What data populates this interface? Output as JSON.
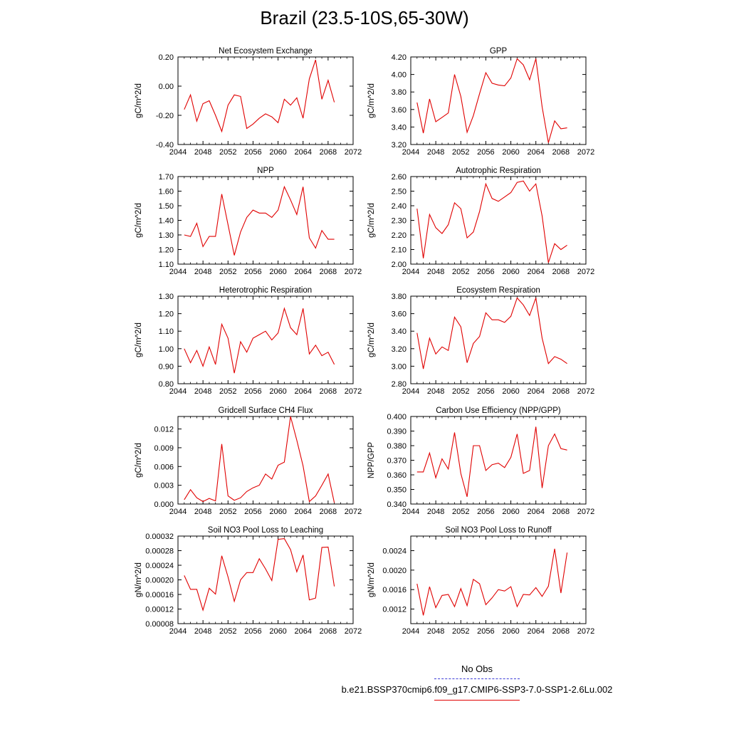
{
  "title": "Brazil (23.5-10S,65-30W)",
  "legend": {
    "obs_label": "No Obs",
    "case_label": "b.e21.BSSP370cmip6.f09_g17.CMIP6-SSP3-7.0-SSP1-2.6Lu.002",
    "obs_color": "#3b3bd6",
    "case_color": "#e00000"
  },
  "chart_data": [
    {
      "type": "line",
      "title": "Net Ecosystem Exchange",
      "ylabel": "gC/m^2/d",
      "xlim": [
        2044,
        2072
      ],
      "xticks": [
        "2044",
        "2048",
        "2052",
        "2056",
        "2060",
        "2064",
        "2068",
        "2072"
      ],
      "ylim": [
        -0.4,
        0.2
      ],
      "yticks": [
        "-0.40",
        "-0.20",
        "0.00",
        "0.20"
      ],
      "x": [
        2045,
        2046,
        2047,
        2048,
        2049,
        2050,
        2051,
        2052,
        2053,
        2054,
        2055,
        2056,
        2057,
        2058,
        2059,
        2060,
        2061,
        2062,
        2063,
        2064,
        2065,
        2066,
        2067,
        2068,
        2069
      ],
      "values": [
        -0.16,
        -0.06,
        -0.24,
        -0.12,
        -0.1,
        -0.2,
        -0.31,
        -0.13,
        -0.06,
        -0.07,
        -0.29,
        -0.26,
        -0.22,
        -0.19,
        -0.21,
        -0.25,
        -0.09,
        -0.13,
        -0.08,
        -0.22,
        0.05,
        0.18,
        -0.09,
        0.04,
        -0.11
      ]
    },
    {
      "type": "line",
      "title": "GPP",
      "ylabel": "gC/m^2/d",
      "xlim": [
        2044,
        2072
      ],
      "xticks": [
        "2044",
        "2048",
        "2052",
        "2056",
        "2060",
        "2064",
        "2068",
        "2072"
      ],
      "ylim": [
        3.2,
        4.2
      ],
      "yticks": [
        "3.20",
        "3.40",
        "3.60",
        "3.80",
        "4.00",
        "4.20"
      ],
      "x": [
        2045,
        2046,
        2047,
        2048,
        2049,
        2050,
        2051,
        2052,
        2053,
        2054,
        2055,
        2056,
        2057,
        2058,
        2059,
        2060,
        2061,
        2062,
        2063,
        2064,
        2065,
        2066,
        2067,
        2068,
        2069
      ],
      "values": [
        3.68,
        3.33,
        3.72,
        3.46,
        3.51,
        3.56,
        4.0,
        3.75,
        3.34,
        3.53,
        3.78,
        4.02,
        3.9,
        3.88,
        3.87,
        3.96,
        4.18,
        4.11,
        3.94,
        4.18,
        3.63,
        3.22,
        3.47,
        3.38,
        3.39
      ]
    },
    {
      "type": "line",
      "title": "NPP",
      "ylabel": "gC/m^2/d",
      "xlim": [
        2044,
        2072
      ],
      "xticks": [
        "2044",
        "2048",
        "2052",
        "2056",
        "2060",
        "2064",
        "2068",
        "2072"
      ],
      "ylim": [
        1.1,
        1.7
      ],
      "yticks": [
        "1.10",
        "1.20",
        "1.30",
        "1.40",
        "1.50",
        "1.60",
        "1.70"
      ],
      "x": [
        2045,
        2046,
        2047,
        2048,
        2049,
        2050,
        2051,
        2052,
        2053,
        2054,
        2055,
        2056,
        2057,
        2058,
        2059,
        2060,
        2061,
        2062,
        2063,
        2064,
        2065,
        2066,
        2067,
        2068,
        2069
      ],
      "values": [
        1.3,
        1.29,
        1.38,
        1.22,
        1.29,
        1.29,
        1.58,
        1.37,
        1.16,
        1.32,
        1.42,
        1.47,
        1.45,
        1.45,
        1.42,
        1.47,
        1.63,
        1.54,
        1.44,
        1.63,
        1.28,
        1.21,
        1.33,
        1.27,
        1.27
      ]
    },
    {
      "type": "line",
      "title": "Autotrophic Respiration",
      "ylabel": "gC/m^2/d",
      "xlim": [
        2044,
        2072
      ],
      "xticks": [
        "2044",
        "2048",
        "2052",
        "2056",
        "2060",
        "2064",
        "2068",
        "2072"
      ],
      "ylim": [
        2.0,
        2.6
      ],
      "yticks": [
        "2.00",
        "2.10",
        "2.20",
        "2.30",
        "2.40",
        "2.50",
        "2.60"
      ],
      "x": [
        2045,
        2046,
        2047,
        2048,
        2049,
        2050,
        2051,
        2052,
        2053,
        2054,
        2055,
        2056,
        2057,
        2058,
        2059,
        2060,
        2061,
        2062,
        2063,
        2064,
        2065,
        2066,
        2067,
        2068,
        2069
      ],
      "values": [
        2.38,
        2.04,
        2.34,
        2.25,
        2.21,
        2.27,
        2.42,
        2.38,
        2.18,
        2.22,
        2.36,
        2.55,
        2.45,
        2.43,
        2.46,
        2.49,
        2.56,
        2.57,
        2.5,
        2.55,
        2.33,
        2.01,
        2.14,
        2.1,
        2.13
      ]
    },
    {
      "type": "line",
      "title": "Heterotrophic Respiration",
      "ylabel": "gC/m^2/d",
      "xlim": [
        2044,
        2072
      ],
      "xticks": [
        "2044",
        "2048",
        "2052",
        "2056",
        "2060",
        "2064",
        "2068",
        "2072"
      ],
      "ylim": [
        0.8,
        1.3
      ],
      "yticks": [
        "0.80",
        "0.90",
        "1.00",
        "1.10",
        "1.20",
        "1.30"
      ],
      "x": [
        2045,
        2046,
        2047,
        2048,
        2049,
        2050,
        2051,
        2052,
        2053,
        2054,
        2055,
        2056,
        2057,
        2058,
        2059,
        2060,
        2061,
        2062,
        2063,
        2064,
        2065,
        2066,
        2067,
        2068,
        2069
      ],
      "values": [
        1.0,
        0.92,
        0.99,
        0.9,
        1.01,
        0.91,
        1.14,
        1.06,
        0.86,
        1.04,
        0.98,
        1.06,
        1.08,
        1.1,
        1.05,
        1.09,
        1.23,
        1.12,
        1.08,
        1.23,
        0.97,
        1.02,
        0.96,
        0.98,
        0.91
      ]
    },
    {
      "type": "line",
      "title": "Ecosystem Respiration",
      "ylabel": "gC/m^2/d",
      "xlim": [
        2044,
        2072
      ],
      "xticks": [
        "2044",
        "2048",
        "2052",
        "2056",
        "2060",
        "2064",
        "2068",
        "2072"
      ],
      "ylim": [
        2.8,
        3.8
      ],
      "yticks": [
        "2.80",
        "3.00",
        "3.20",
        "3.40",
        "3.60",
        "3.80"
      ],
      "x": [
        2045,
        2046,
        2047,
        2048,
        2049,
        2050,
        2051,
        2052,
        2053,
        2054,
        2055,
        2056,
        2057,
        2058,
        2059,
        2060,
        2061,
        2062,
        2063,
        2064,
        2065,
        2066,
        2067,
        2068,
        2069
      ],
      "values": [
        3.38,
        2.97,
        3.32,
        3.14,
        3.22,
        3.18,
        3.56,
        3.45,
        3.04,
        3.26,
        3.34,
        3.61,
        3.53,
        3.53,
        3.5,
        3.57,
        3.78,
        3.7,
        3.58,
        3.78,
        3.32,
        3.03,
        3.11,
        3.08,
        3.03
      ]
    },
    {
      "type": "line",
      "title": "Gridcell Surface CH4 Flux",
      "ylabel": "gC/m^2/d",
      "xlim": [
        2044,
        2072
      ],
      "xticks": [
        "2044",
        "2048",
        "2052",
        "2056",
        "2060",
        "2064",
        "2068",
        "2072"
      ],
      "ylim": [
        0.0,
        0.014
      ],
      "yticks": [
        "0.000",
        "0.003",
        "0.006",
        "0.009",
        "0.012"
      ],
      "ytick_values": [
        0,
        0.003,
        0.006,
        0.009,
        0.012
      ],
      "x": [
        2045,
        2046,
        2047,
        2048,
        2049,
        2050,
        2051,
        2052,
        2053,
        2054,
        2055,
        2056,
        2057,
        2058,
        2059,
        2060,
        2061,
        2062,
        2063,
        2064,
        2065,
        2066,
        2067,
        2068,
        2069
      ],
      "values": [
        0.0007,
        0.0023,
        0.001,
        0.0004,
        0.0009,
        0.0005,
        0.0096,
        0.0013,
        0.0006,
        0.001,
        0.002,
        0.0026,
        0.003,
        0.0048,
        0.004,
        0.0062,
        0.0067,
        0.014,
        0.0102,
        0.0061,
        0.0004,
        0.0013,
        0.003,
        0.0048,
        0.0002
      ]
    },
    {
      "type": "line",
      "title": "Carbon Use Efficiency (NPP/GPP)",
      "ylabel": "NPP/GPP",
      "xlim": [
        2044,
        2072
      ],
      "xticks": [
        "2044",
        "2048",
        "2052",
        "2056",
        "2060",
        "2064",
        "2068",
        "2072"
      ],
      "ylim": [
        0.34,
        0.4
      ],
      "yticks": [
        "0.340",
        "0.350",
        "0.360",
        "0.370",
        "0.380",
        "0.390",
        "0.400"
      ],
      "x": [
        2045,
        2046,
        2047,
        2048,
        2049,
        2050,
        2051,
        2052,
        2053,
        2054,
        2055,
        2056,
        2057,
        2058,
        2059,
        2060,
        2061,
        2062,
        2063,
        2064,
        2065,
        2066,
        2067,
        2068,
        2069
      ],
      "values": [
        0.362,
        0.362,
        0.375,
        0.358,
        0.371,
        0.364,
        0.389,
        0.361,
        0.345,
        0.38,
        0.38,
        0.363,
        0.367,
        0.368,
        0.365,
        0.372,
        0.388,
        0.361,
        0.363,
        0.393,
        0.351,
        0.38,
        0.388,
        0.378,
        0.377
      ]
    },
    {
      "type": "line",
      "title": "Soil NO3 Pool Loss to Leaching",
      "ylabel": "gN/m^2/d",
      "xlim": [
        2044,
        2072
      ],
      "xticks": [
        "2044",
        "2048",
        "2052",
        "2056",
        "2060",
        "2064",
        "2068",
        "2072"
      ],
      "ylim": [
        8e-05,
        0.00032
      ],
      "yticks": [
        "0.00008",
        "0.00012",
        "0.00016",
        "0.00020",
        "0.00024",
        "0.00028",
        "0.00032"
      ],
      "x": [
        2045,
        2046,
        2047,
        2048,
        2049,
        2050,
        2051,
        2052,
        2053,
        2054,
        2055,
        2056,
        2057,
        2058,
        2059,
        2060,
        2061,
        2062,
        2063,
        2064,
        2065,
        2066,
        2067,
        2068,
        2069
      ],
      "values": [
        0.000212,
        0.000174,
        0.000174,
        0.000117,
        0.000177,
        0.000161,
        0.000266,
        0.000208,
        0.000141,
        0.0002,
        0.00022,
        0.00022,
        0.000258,
        0.00023,
        0.000198,
        0.000311,
        0.000313,
        0.000283,
        0.000222,
        0.000268,
        0.000145,
        0.00015,
        0.000289,
        0.00029,
        0.000182
      ]
    },
    {
      "type": "line",
      "title": "Soil NO3 Pool Loss to Runoff",
      "ylabel": "gN/m^2/d",
      "xlim": [
        2044,
        2072
      ],
      "xticks": [
        "2044",
        "2048",
        "2052",
        "2056",
        "2060",
        "2064",
        "2068",
        "2072"
      ],
      "ylim": [
        0.0009,
        0.0027
      ],
      "yticks": [
        "0.0012",
        "0.0016",
        "0.0020",
        "0.0024"
      ],
      "ytick_values": [
        0.0012,
        0.0016,
        0.002,
        0.0024
      ],
      "x": [
        2045,
        2046,
        2047,
        2048,
        2049,
        2050,
        2051,
        2052,
        2053,
        2054,
        2055,
        2056,
        2057,
        2058,
        2059,
        2060,
        2061,
        2062,
        2063,
        2064,
        2065,
        2066,
        2067,
        2068,
        2069
      ],
      "values": [
        0.00172,
        0.00107,
        0.00166,
        0.00123,
        0.00148,
        0.0015,
        0.00125,
        0.00162,
        0.00127,
        0.00181,
        0.00172,
        0.00129,
        0.00143,
        0.0016,
        0.00157,
        0.00166,
        0.00125,
        0.0015,
        0.00149,
        0.00164,
        0.00146,
        0.00167,
        0.00244,
        0.00153,
        0.00236
      ]
    }
  ]
}
